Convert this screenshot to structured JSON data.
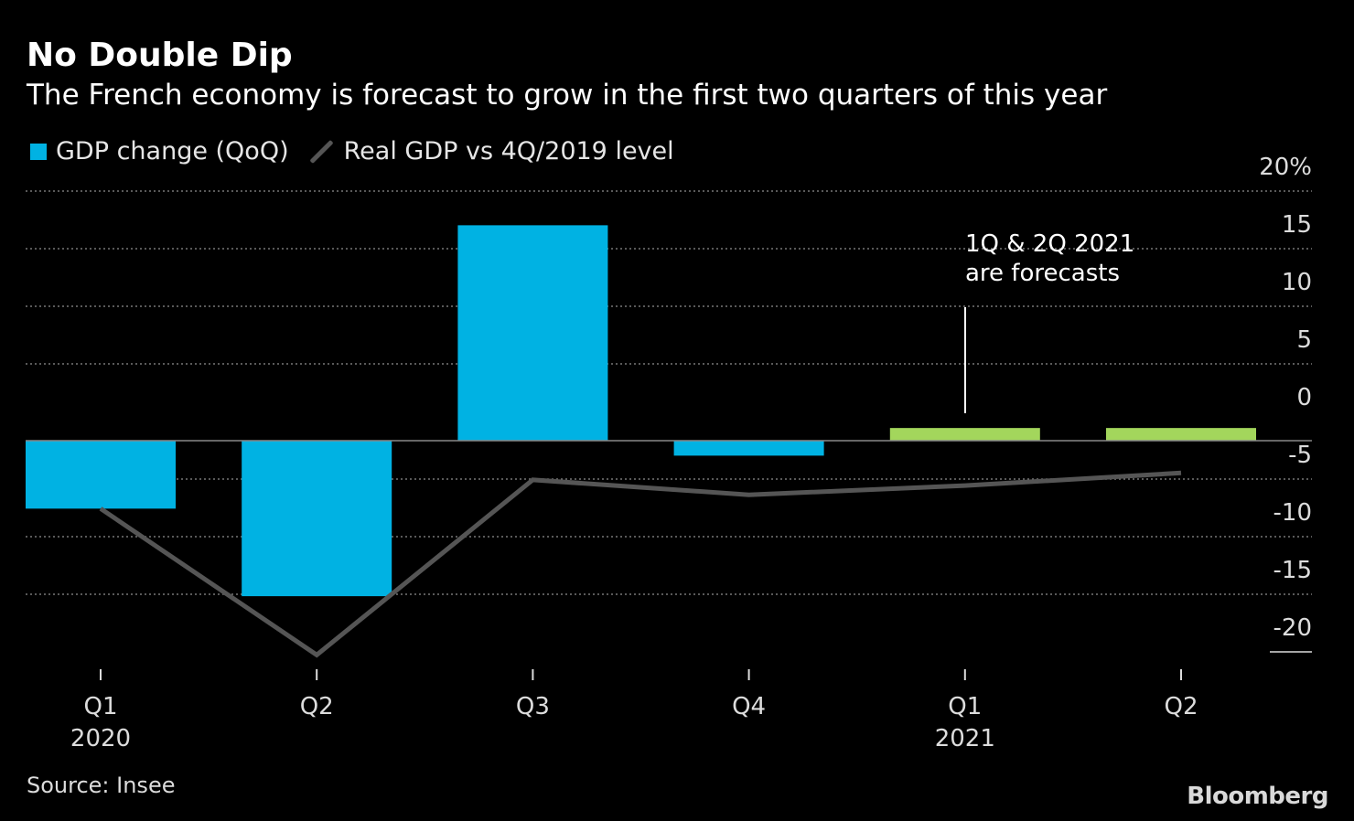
{
  "title": "No Double Dip",
  "subtitle": "The French economy is forecast to grow in the first two quarters of this year",
  "legend": {
    "bar_label": "GDP change (QoQ)",
    "line_label": "Real GDP vs 4Q/2019 level"
  },
  "annotation": {
    "line1": "1Q & 2Q 2021",
    "line2": "are forecasts"
  },
  "source": "Source: Insee",
  "brand": "Bloomberg",
  "colors": {
    "bar_actual": "#00b2e3",
    "bar_forecast": "#a3d65c",
    "line": "#555555",
    "grid": "#777777"
  },
  "chart_data": {
    "type": "bar",
    "categories": [
      "Q1",
      "Q2",
      "Q3",
      "Q4",
      "Q1",
      "Q2"
    ],
    "year_labels": [
      "2020",
      "",
      "",
      "",
      "2021",
      ""
    ],
    "series": [
      {
        "name": "GDP change (QoQ)",
        "kind": "bar",
        "values": [
          -5.9,
          -13.5,
          18.7,
          -1.3,
          1.1,
          1.1
        ],
        "forecast": [
          false,
          false,
          false,
          false,
          true,
          true
        ]
      },
      {
        "name": "Real GDP vs 4Q/2019 level",
        "kind": "line",
        "values": [
          -5.9,
          -18.6,
          -3.4,
          -4.7,
          -3.9,
          -2.8
        ]
      }
    ],
    "yticks": [
      {
        "value": 20,
        "label": "20%"
      },
      {
        "value": 15,
        "label": "15"
      },
      {
        "value": 10,
        "label": "10"
      },
      {
        "value": 5,
        "label": "5"
      },
      {
        "value": 0,
        "label": "0"
      },
      {
        "value": -5,
        "label": "-5"
      },
      {
        "value": -10,
        "label": "-10"
      },
      {
        "value": -15,
        "label": "-15"
      },
      {
        "value": -20,
        "label": "-20"
      }
    ],
    "ylim": [
      -20,
      20
    ],
    "grid": true
  }
}
